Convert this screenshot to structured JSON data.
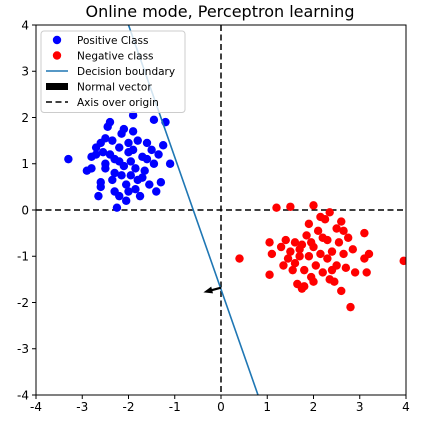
{
  "chart_data": {
    "type": "scatter",
    "title": "Online mode, Perceptron learning",
    "xlabel": "",
    "ylabel": "",
    "xlim": [
      -4,
      4
    ],
    "ylim": [
      -4,
      4
    ],
    "xticks": [
      -4,
      -3,
      -2,
      -1,
      0,
      1,
      2,
      3,
      4
    ],
    "yticks": [
      -4,
      -3,
      -2,
      -1,
      0,
      1,
      2,
      3,
      4
    ],
    "grid": false,
    "legend_position": "top-left",
    "series": [
      {
        "name": "Positive Class",
        "kind": "points",
        "color": "#0000ff",
        "points": [
          [
            -3.3,
            1.1
          ],
          [
            -2.9,
            0.85
          ],
          [
            -2.8,
            0.9
          ],
          [
            -2.8,
            1.15
          ],
          [
            -2.7,
            1.2
          ],
          [
            -2.7,
            1.35
          ],
          [
            -2.6,
            1.45
          ],
          [
            -2.5,
            1.55
          ],
          [
            -2.5,
            1.0
          ],
          [
            -2.6,
            0.6
          ],
          [
            -2.6,
            0.5
          ],
          [
            -2.65,
            0.3
          ],
          [
            -2.45,
            1.8
          ],
          [
            -2.4,
            1.9
          ],
          [
            -2.35,
            1.5
          ],
          [
            -2.4,
            1.2
          ],
          [
            -2.3,
            1.1
          ],
          [
            -2.3,
            0.8
          ],
          [
            -2.35,
            0.65
          ],
          [
            -2.2,
            0.3
          ],
          [
            -2.25,
            0.05
          ],
          [
            -2.2,
            1.35
          ],
          [
            -2.15,
            1.65
          ],
          [
            -2.1,
            1.75
          ],
          [
            -2.1,
            0.95
          ],
          [
            -2.05,
            0.55
          ],
          [
            -2.05,
            0.2
          ],
          [
            -2.0,
            1.25
          ],
          [
            -1.95,
            1.05
          ],
          [
            -1.95,
            0.75
          ],
          [
            -1.9,
            1.7
          ],
          [
            -1.9,
            2.05
          ],
          [
            -1.85,
            0.45
          ],
          [
            -1.85,
            0.9
          ],
          [
            -1.8,
            1.5
          ],
          [
            -1.8,
            0.65
          ],
          [
            -1.75,
            0.3
          ],
          [
            -1.7,
            1.15
          ],
          [
            -1.65,
            0.85
          ],
          [
            -1.6,
            1.45
          ],
          [
            -1.55,
            0.55
          ],
          [
            -1.5,
            1.3
          ],
          [
            -1.45,
            1.0
          ],
          [
            -1.45,
            1.95
          ],
          [
            -1.4,
            0.4
          ],
          [
            -1.35,
            1.2
          ],
          [
            -1.3,
            0.6
          ],
          [
            -1.25,
            1.4
          ],
          [
            -1.2,
            1.9
          ],
          [
            -1.1,
            1.0
          ],
          [
            -2.15,
            0.75
          ],
          [
            -2.2,
            1.05
          ],
          [
            -2.0,
            0.4
          ],
          [
            -2.0,
            1.45
          ],
          [
            -1.7,
            0.7
          ],
          [
            -2.5,
            0.9
          ],
          [
            -2.55,
            1.25
          ],
          [
            -1.6,
            1.1
          ],
          [
            -1.9,
            1.3
          ],
          [
            -2.3,
            0.4
          ]
        ]
      },
      {
        "name": "Negative class",
        "kind": "points",
        "color": "#ff0000",
        "points": [
          [
            0.4,
            -1.05
          ],
          [
            1.05,
            -1.4
          ],
          [
            1.05,
            -0.7
          ],
          [
            1.1,
            -0.95
          ],
          [
            1.2,
            0.05
          ],
          [
            1.3,
            -0.8
          ],
          [
            1.35,
            -1.2
          ],
          [
            1.4,
            -0.65
          ],
          [
            1.5,
            0.07
          ],
          [
            1.5,
            -0.9
          ],
          [
            1.55,
            -1.3
          ],
          [
            1.6,
            -0.7
          ],
          [
            1.65,
            -1.6
          ],
          [
            1.7,
            -1.0
          ],
          [
            1.75,
            -0.75
          ],
          [
            1.75,
            -1.7
          ],
          [
            1.8,
            -1.3
          ],
          [
            1.85,
            -0.55
          ],
          [
            1.9,
            -1.0
          ],
          [
            1.9,
            -0.3
          ],
          [
            1.95,
            -1.45
          ],
          [
            2.0,
            0.1
          ],
          [
            2.0,
            -0.8
          ],
          [
            2.05,
            -1.2
          ],
          [
            2.1,
            -0.45
          ],
          [
            2.15,
            -0.95
          ],
          [
            2.2,
            -1.35
          ],
          [
            2.25,
            -0.2
          ],
          [
            2.3,
            -0.65
          ],
          [
            2.3,
            -1.05
          ],
          [
            2.35,
            -0.05
          ],
          [
            2.4,
            -0.9
          ],
          [
            2.45,
            -1.55
          ],
          [
            2.5,
            -0.4
          ],
          [
            2.5,
            -1.2
          ],
          [
            2.55,
            -0.7
          ],
          [
            2.6,
            -0.25
          ],
          [
            2.6,
            -1.75
          ],
          [
            2.65,
            -0.95
          ],
          [
            2.7,
            -1.25
          ],
          [
            2.75,
            -0.6
          ],
          [
            2.8,
            -2.1
          ],
          [
            2.85,
            -0.85
          ],
          [
            2.9,
            -1.35
          ],
          [
            3.1,
            -0.5
          ],
          [
            3.1,
            -1.05
          ],
          [
            3.15,
            -1.35
          ],
          [
            3.2,
            -0.95
          ],
          [
            3.95,
            -1.1
          ],
          [
            1.8,
            -1.65
          ],
          [
            2.0,
            -1.55
          ],
          [
            2.2,
            -0.6
          ],
          [
            1.6,
            -1.15
          ],
          [
            2.4,
            -1.3
          ],
          [
            1.45,
            -1.05
          ],
          [
            2.15,
            -0.15
          ],
          [
            1.95,
            -0.7
          ],
          [
            2.65,
            -0.45
          ],
          [
            1.7,
            -0.85
          ],
          [
            2.35,
            -1.5
          ]
        ]
      },
      {
        "name": "Decision boundary",
        "kind": "line",
        "color": "#1f77b4",
        "points": [
          [
            -2.0,
            4.0
          ],
          [
            0.8,
            -4.0
          ]
        ]
      },
      {
        "name": "Normal vector",
        "kind": "arrow",
        "color": "#000000",
        "points": [
          [
            0.0,
            -1.68
          ],
          [
            -0.38,
            -1.78
          ]
        ]
      },
      {
        "name": "Axis over origin",
        "kind": "axes",
        "color": "#000000",
        "points": [
          [
            0,
            0
          ]
        ]
      }
    ]
  }
}
